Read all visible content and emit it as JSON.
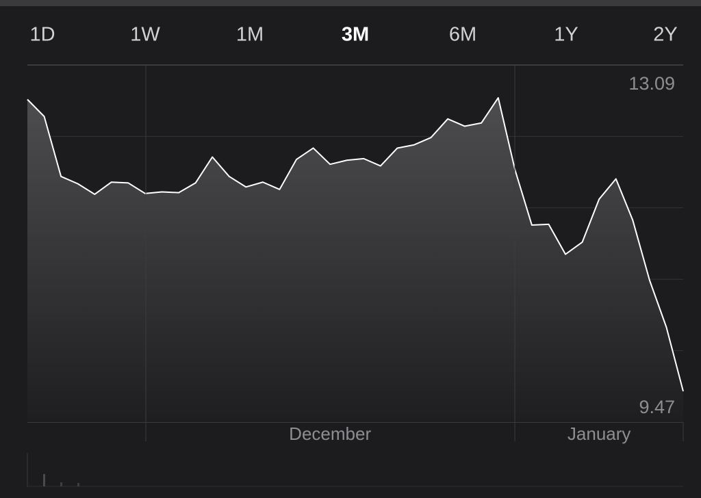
{
  "tabs": {
    "items": [
      "1D",
      "1W",
      "1M",
      "3M",
      "6M",
      "1Y",
      "2Y"
    ],
    "selected": 3
  },
  "chart_data": {
    "type": "line",
    "categories": [
      null,
      null,
      null,
      null,
      null,
      null,
      null,
      null,
      null,
      null,
      null,
      null,
      null,
      null,
      null,
      null,
      null,
      null,
      "December",
      null,
      null,
      null,
      null,
      null,
      null,
      null,
      null,
      null,
      null,
      null,
      null,
      null,
      null,
      null,
      "January",
      null,
      null,
      null,
      null,
      null
    ],
    "values": [
      13.07,
      12.86,
      12.12,
      12.03,
      11.9,
      12.05,
      12.04,
      11.91,
      11.93,
      11.92,
      12.04,
      12.36,
      12.12,
      11.99,
      12.05,
      11.96,
      12.33,
      12.47,
      12.27,
      12.32,
      12.34,
      12.25,
      12.47,
      12.51,
      12.6,
      12.83,
      12.74,
      12.78,
      13.09,
      12.2,
      11.52,
      11.53,
      11.16,
      11.31,
      11.84,
      12.09,
      11.58,
      10.84,
      10.26,
      9.47
    ],
    "max": 13.09,
    "min": 9.47,
    "ylim": [
      9.09,
      13.495
    ],
    "color": "#ffffff",
    "grid": true
  }
}
